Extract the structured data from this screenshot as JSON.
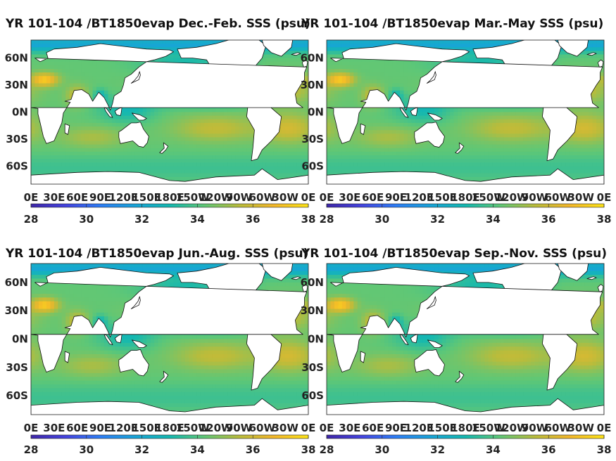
{
  "chart_data": [
    {
      "type": "heatmap",
      "title": "YR 101-104 /BT1850evap Dec.-Feb. SSS (psu)",
      "variable": "Sea surface salinity",
      "units": "psu",
      "x_ticks": [
        "0E",
        "30E",
        "60E",
        "90E",
        "120E",
        "150E",
        "180E",
        "150W",
        "120W",
        "90W",
        "60W",
        "30W",
        "0E"
      ],
      "y_ticks": [
        "60N",
        "30N",
        "0N",
        "30S",
        "60S"
      ],
      "colorbar": {
        "ticks": [
          28,
          30,
          32,
          34,
          36,
          38
        ],
        "range": [
          28,
          38
        ]
      }
    },
    {
      "type": "heatmap",
      "title": "YR 101-104 /BT1850evap Mar.-May SSS (psu)",
      "variable": "Sea surface salinity",
      "units": "psu",
      "x_ticks": [
        "0E",
        "30E",
        "60E",
        "90E",
        "120E",
        "150E",
        "180E",
        "150W",
        "120W",
        "90W",
        "60W",
        "30W",
        "0E"
      ],
      "y_ticks": [
        "60N",
        "30N",
        "0N",
        "30S",
        "60S"
      ],
      "colorbar": {
        "ticks": [
          28,
          30,
          32,
          34,
          36,
          38
        ],
        "range": [
          28,
          38
        ]
      }
    },
    {
      "type": "heatmap",
      "title": "YR 101-104 /BT1850evap Jun.-Aug. SSS (psu)",
      "variable": "Sea surface salinity",
      "units": "psu",
      "x_ticks": [
        "0E",
        "30E",
        "60E",
        "90E",
        "120E",
        "150E",
        "180E",
        "150W",
        "120W",
        "90W",
        "60W",
        "30W",
        "0E"
      ],
      "y_ticks": [
        "60N",
        "30N",
        "0N",
        "30S",
        "60S"
      ],
      "colorbar": {
        "ticks": [
          28,
          30,
          32,
          34,
          36,
          38
        ],
        "range": [
          28,
          38
        ]
      }
    },
    {
      "type": "heatmap",
      "title": "YR 101-104 /BT1850evap Sep.-Nov. SSS (psu)",
      "variable": "Sea surface salinity",
      "units": "psu",
      "x_ticks": [
        "0E",
        "30E",
        "60E",
        "90E",
        "120E",
        "150E",
        "180E",
        "150W",
        "120W",
        "90W",
        "60W",
        "30W",
        "0E"
      ],
      "y_ticks": [
        "60N",
        "30N",
        "0N",
        "30S",
        "60S"
      ],
      "colorbar": {
        "ticks": [
          28,
          30,
          32,
          34,
          36,
          38
        ],
        "range": [
          28,
          38
        ]
      }
    }
  ],
  "colormap": {
    "name": "parula",
    "stops": [
      "#3e26a8",
      "#4443df",
      "#2d7df6",
      "#18a4d8",
      "#14b8b0",
      "#5fc776",
      "#b8bc3c",
      "#f3b72a",
      "#fbe218"
    ]
  },
  "colors": {
    "land": "#ffffff",
    "coast": "#111111",
    "ocean_mid": "#5fc776",
    "subtropical_high": "#f3b72a"
  }
}
